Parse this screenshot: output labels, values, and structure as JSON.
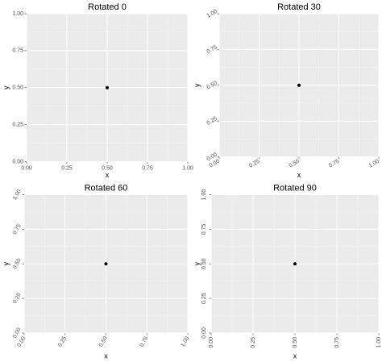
{
  "chart_data": [
    {
      "type": "scatter",
      "title": "Rotated 0",
      "x_label": "x",
      "y_label": "y",
      "tick_label_rotation": 0,
      "x": [
        0.5
      ],
      "y": [
        0.5
      ],
      "color": "#000000",
      "xlim": [
        0,
        1
      ],
      "ylim": [
        0,
        1
      ],
      "grid": true,
      "xticks": [
        {
          "value": 0,
          "label": "0.00"
        },
        {
          "value": 0.25,
          "label": "0.25"
        },
        {
          "value": 0.5,
          "label": "0.50"
        },
        {
          "value": 0.75,
          "label": "0.75"
        },
        {
          "value": 1,
          "label": "1.00"
        }
      ],
      "yticks": [
        {
          "value": 0,
          "label": "0.00"
        },
        {
          "value": 0.25,
          "label": "0.25"
        },
        {
          "value": 0.5,
          "label": "0.50"
        },
        {
          "value": 0.75,
          "label": "0.75"
        },
        {
          "value": 1,
          "label": "1.00"
        }
      ]
    },
    {
      "type": "scatter",
      "title": "Rotated 30",
      "x_label": "x",
      "y_label": "y",
      "tick_label_rotation": 30,
      "x": [
        0.5
      ],
      "y": [
        0.5
      ],
      "color": "#000000",
      "xlim": [
        0,
        1
      ],
      "ylim": [
        0,
        1
      ],
      "grid": true,
      "xticks": [
        {
          "value": 0,
          "label": "0.00"
        },
        {
          "value": 0.25,
          "label": "0.25"
        },
        {
          "value": 0.5,
          "label": "0.50"
        },
        {
          "value": 0.75,
          "label": "0.75"
        },
        {
          "value": 1,
          "label": "1.00"
        }
      ],
      "yticks": [
        {
          "value": 0,
          "label": "0.00"
        },
        {
          "value": 0.25,
          "label": "0.25"
        },
        {
          "value": 0.5,
          "label": "0.50"
        },
        {
          "value": 0.75,
          "label": "0.75"
        },
        {
          "value": 1,
          "label": "1.00"
        }
      ]
    },
    {
      "type": "scatter",
      "title": "Rotated 60",
      "x_label": "x",
      "y_label": "y",
      "tick_label_rotation": 60,
      "x": [
        0.5
      ],
      "y": [
        0.5
      ],
      "color": "#000000",
      "xlim": [
        0,
        1
      ],
      "ylim": [
        0,
        1
      ],
      "grid": true,
      "xticks": [
        {
          "value": 0,
          "label": "0.00"
        },
        {
          "value": 0.25,
          "label": "0.25"
        },
        {
          "value": 0.5,
          "label": "0.50"
        },
        {
          "value": 0.75,
          "label": "0.75"
        },
        {
          "value": 1,
          "label": "1.00"
        }
      ],
      "yticks": [
        {
          "value": 0,
          "label": "0.00"
        },
        {
          "value": 0.25,
          "label": "0.25"
        },
        {
          "value": 0.5,
          "label": "0.50"
        },
        {
          "value": 0.75,
          "label": "0.75"
        },
        {
          "value": 1,
          "label": "1.00"
        }
      ]
    },
    {
      "type": "scatter",
      "title": "Rotated 90",
      "x_label": "x",
      "y_label": "y",
      "tick_label_rotation": 90,
      "x": [
        0.5
      ],
      "y": [
        0.5
      ],
      "color": "#000000",
      "xlim": [
        0,
        1
      ],
      "ylim": [
        0,
        1
      ],
      "grid": true,
      "xticks": [
        {
          "value": 0,
          "label": "0.00"
        },
        {
          "value": 0.25,
          "label": "0.25"
        },
        {
          "value": 0.5,
          "label": "0.50"
        },
        {
          "value": 0.75,
          "label": "0.75"
        },
        {
          "value": 1,
          "label": "1.00"
        }
      ],
      "yticks": [
        {
          "value": 0,
          "label": "0.00"
        },
        {
          "value": 0.25,
          "label": "0.25"
        },
        {
          "value": 0.5,
          "label": "0.50"
        },
        {
          "value": 0.75,
          "label": "0.75"
        },
        {
          "value": 1,
          "label": "1.00"
        }
      ]
    }
  ]
}
